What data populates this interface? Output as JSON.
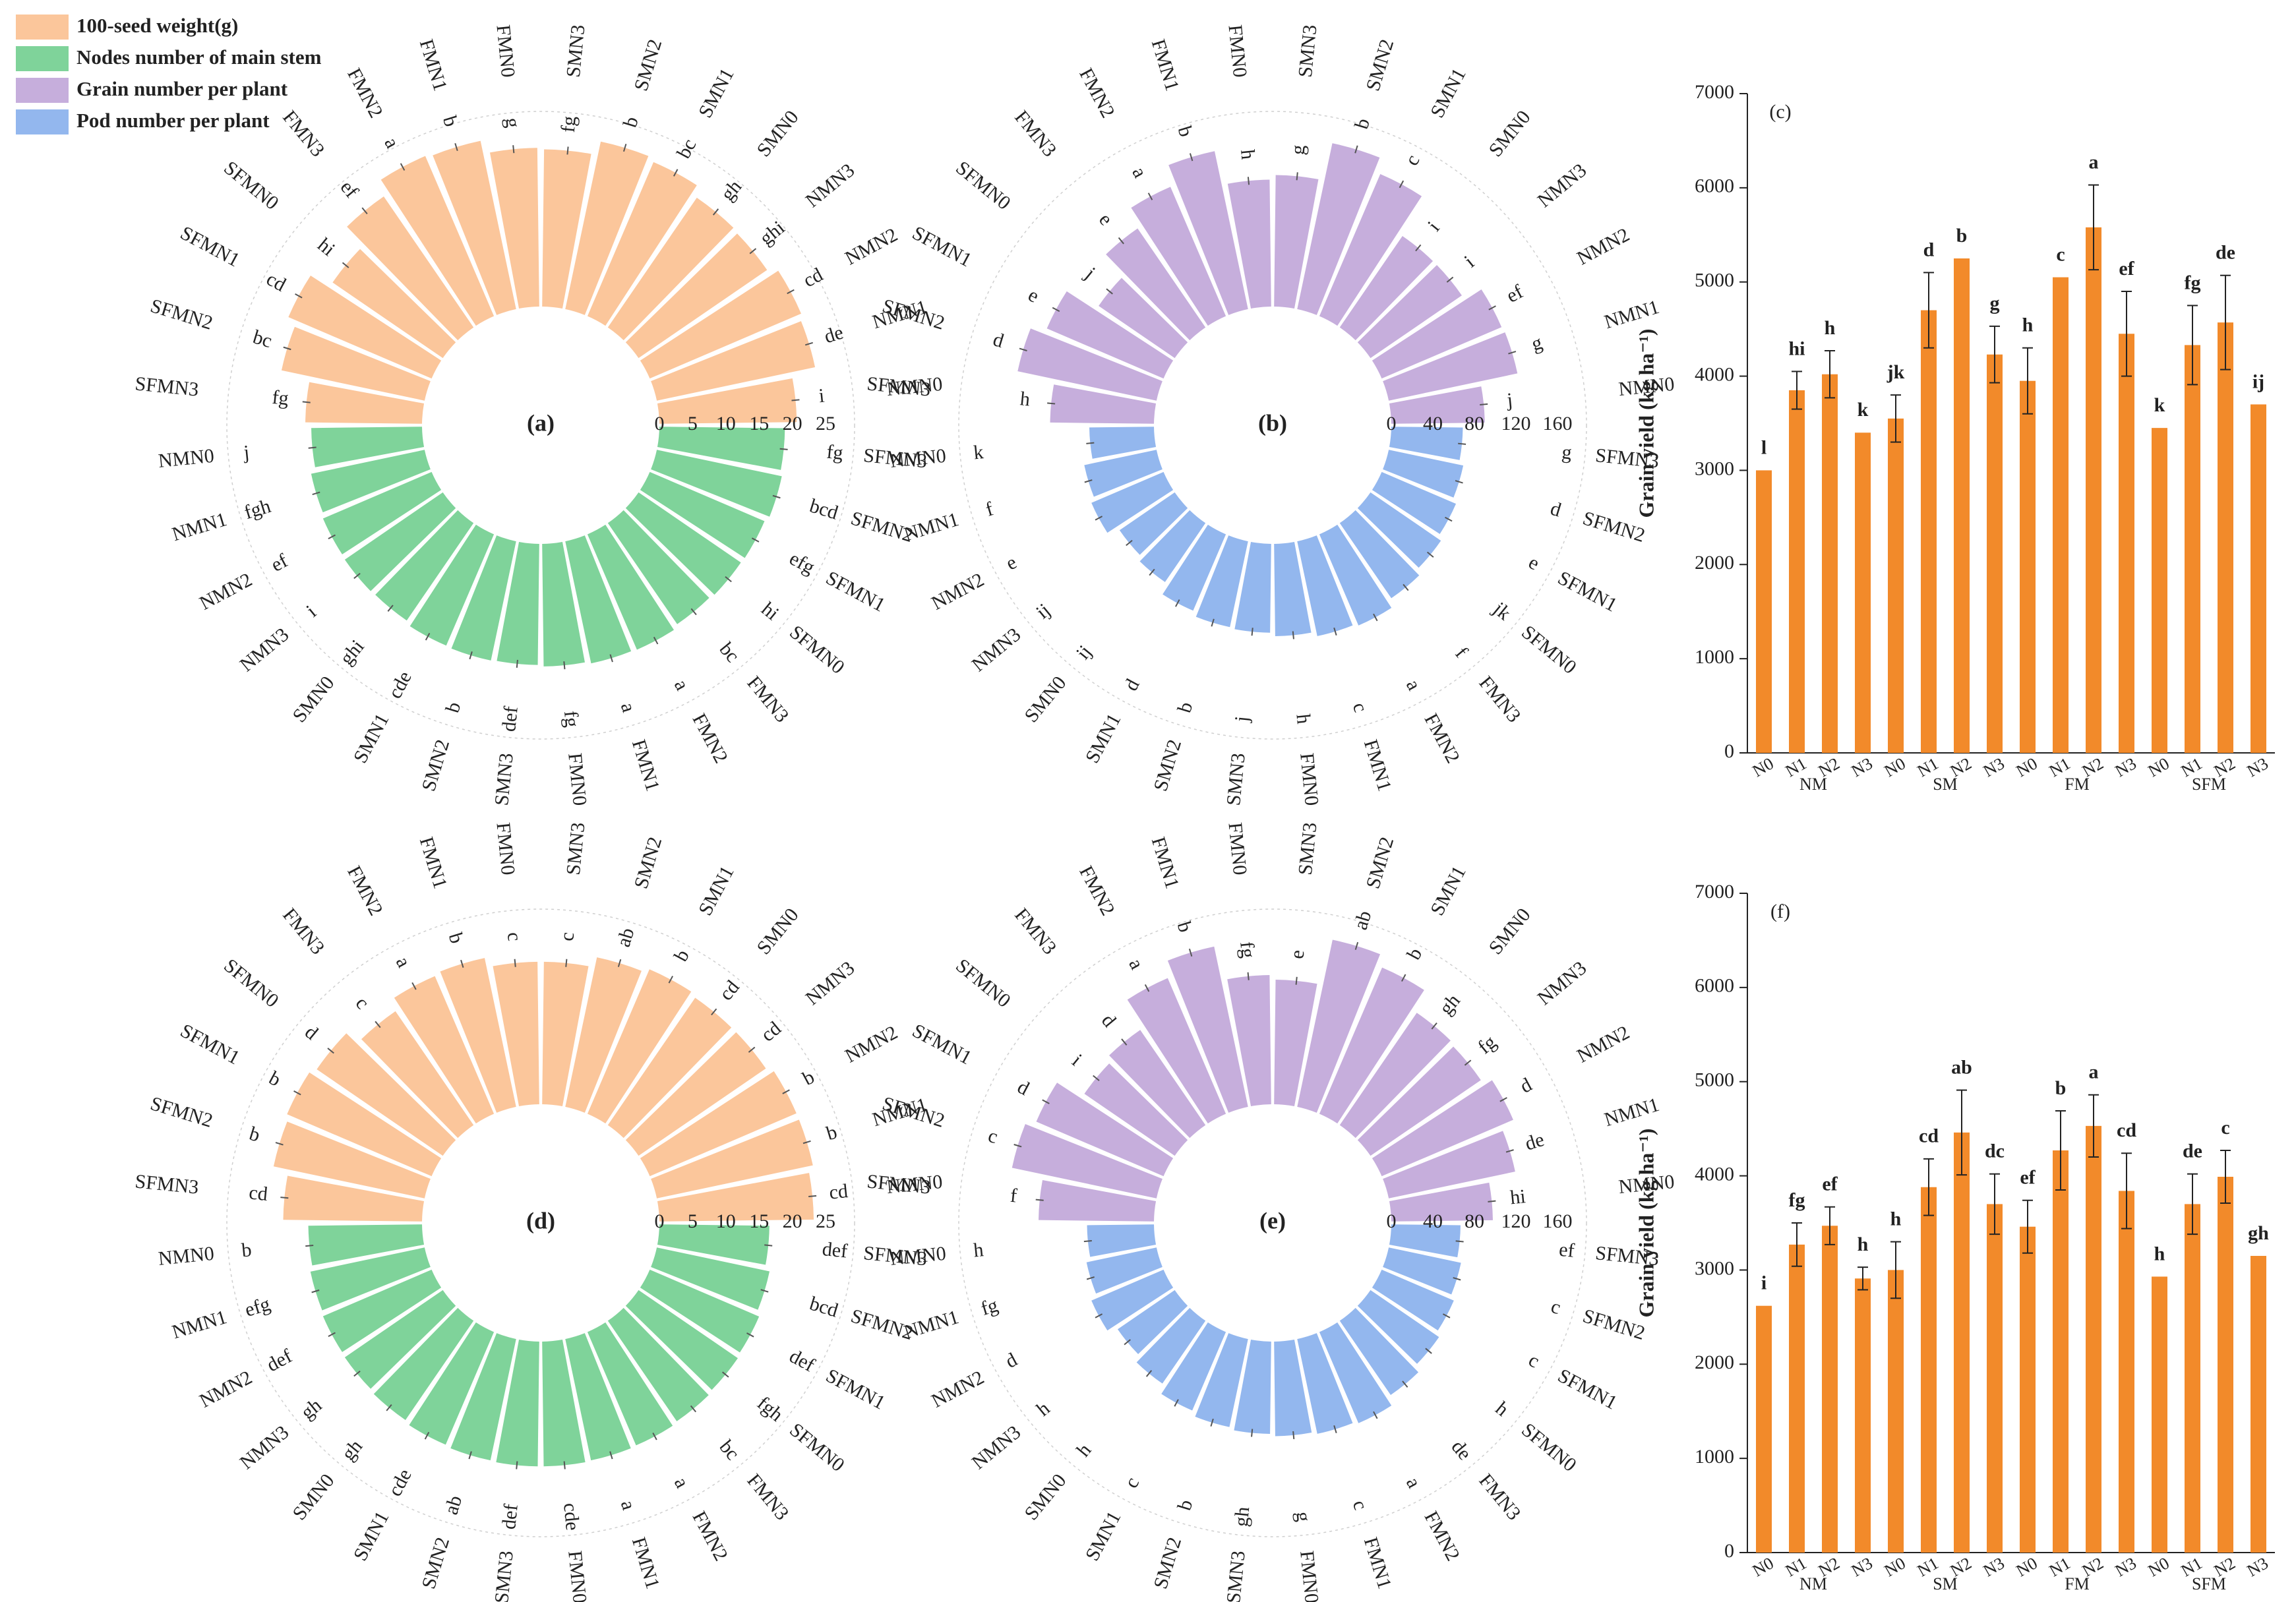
{
  "legend": [
    {
      "label": "100-seed weight(g)",
      "color": "#FBC69B"
    },
    {
      "label": "Nodes number of main stem",
      "color": "#7FD39A"
    },
    {
      "label": "Grain number per plant",
      "color": "#C6AEDC"
    },
    {
      "label": "Pod number per plant",
      "color": "#93B7EE"
    }
  ],
  "chart_data": [
    {
      "type": "radial-bar",
      "panel": "(a)",
      "color_outer": "#FBC69B",
      "color_inner": "#7FD39A",
      "scale_ticks": [
        "0",
        "5",
        "10",
        "15",
        "20",
        "25"
      ],
      "max": 25,
      "top_categories": [
        "SFMN3",
        "SFMN2",
        "SFMN1",
        "SFMN0",
        "FMN3",
        "FMN2",
        "FMN1",
        "FMN0",
        "SMN3",
        "SMN2",
        "SMN1",
        "SMN0",
        "NMN3",
        "NMN2",
        "NMN1",
        "NMN0"
      ],
      "top_values": [
        15.8,
        19.8,
        21.1,
        18.1,
        21.5,
        23.6,
        23.3,
        21.5,
        21.3,
        23.2,
        22.7,
        21.3,
        21.1,
        22.3,
        21.9,
        18.6
      ],
      "top_letters": [
        "fg",
        "bc",
        "cd",
        "hi",
        "ef",
        "a",
        "b",
        "g",
        "fg",
        "b",
        "bc",
        "gh",
        "ghi",
        "cd",
        "de",
        "i"
      ],
      "bottom_categories": [
        "NMN0",
        "NMN1",
        "NMN2",
        "NMN3",
        "SMN0",
        "SMN1",
        "SMN2",
        "SMN3",
        "FMN0",
        "FMN1",
        "FMN2",
        "FMN3",
        "SFMN0",
        "SFMN1",
        "SFMN2",
        "SFMN3"
      ],
      "bottom_values": [
        15.0,
        15.7,
        16.0,
        16.1,
        16.0,
        16.4,
        16.5,
        16.4,
        16.6,
        16.9,
        17.0,
        16.6,
        16.8,
        16.9,
        17.3,
        17.0
      ],
      "bottom_letters": [
        "j",
        "fgh",
        "ef",
        "i",
        "ghi",
        "cde",
        "b",
        "def",
        "fg",
        "a",
        "a",
        "bc",
        "hi",
        "efg",
        "bcd",
        "fg"
      ]
    },
    {
      "type": "radial-bar",
      "panel": "(b)",
      "color_outer": "#C6AEDC",
      "color_inner": "#93B7EE",
      "scale_ticks": [
        "0",
        "40",
        "80",
        "120",
        "160"
      ],
      "max": 160,
      "top_categories": [
        "SFMN3",
        "SFMN2",
        "SFMN1",
        "SFMN0",
        "FMN3",
        "FMN2",
        "FMN1",
        "FMN0",
        "SMN3",
        "SMN2",
        "SMN1",
        "SMN0",
        "NMN3",
        "NMN2",
        "NMN1",
        "NMN0"
      ],
      "top_values": [
        90,
        123,
        110,
        80,
        104,
        122,
        140,
        110,
        114,
        147,
        134,
        96,
        96,
        113,
        114,
        81
      ],
      "top_letters": [
        "h",
        "d",
        "e",
        "j",
        "e",
        "a",
        "b",
        "h",
        "g",
        "b",
        "c",
        "i",
        "i",
        "ef",
        "g",
        "j"
      ],
      "bottom_categories": [
        "NMN0",
        "NMN1",
        "NMN2",
        "NMN3",
        "SMN0",
        "SMN1",
        "SMN2",
        "SMN3",
        "FMN0",
        "FMN1",
        "FMN2",
        "FMN3",
        "SFMN0",
        "SFMN1",
        "SFMN2",
        "SFMN3"
      ],
      "bottom_values": [
        56,
        64,
        68,
        58,
        62,
        72,
        76,
        77,
        80,
        84,
        86,
        79,
        74,
        70,
        66,
        62
      ],
      "bottom_letters": [
        "k",
        "f",
        "e",
        "ij",
        "ij",
        "d",
        "b",
        "j",
        "h",
        "c",
        "a",
        "f",
        "jk",
        "e",
        "d",
        "g"
      ]
    },
    {
      "type": "bar",
      "panel": "(c)",
      "color": "#F28A2A",
      "ylabel": "Grain yield (kg ha⁻¹)",
      "ylim": [
        0,
        7000
      ],
      "yticks": [
        "0",
        "1000",
        "2000",
        "3000",
        "4000",
        "5000",
        "6000",
        "7000"
      ],
      "categories": [
        "N0",
        "N1",
        "N2",
        "N3",
        "N0",
        "N1",
        "N2",
        "N3",
        "N0",
        "N1",
        "N2",
        "N3",
        "N0",
        "N1",
        "N2",
        "N3"
      ],
      "groups": [
        "NM",
        "SM",
        "FM",
        "SFM"
      ],
      "values": [
        3000,
        3850,
        4020,
        3400,
        3550,
        4700,
        5250,
        4230,
        3950,
        5050,
        5580,
        4450,
        3450,
        4330,
        4570,
        3700
      ],
      "errors": [
        0,
        200,
        250,
        0,
        250,
        400,
        0,
        300,
        350,
        0,
        450,
        450,
        0,
        420,
        500,
        0
      ],
      "letters": [
        "l",
        "hi",
        "h",
        "k",
        "jk",
        "d",
        "b",
        "g",
        "h",
        "c",
        "a",
        "ef",
        "k",
        "fg",
        "de",
        "ij"
      ]
    },
    {
      "type": "radial-bar",
      "panel": "(d)",
      "color_outer": "#FBC69B",
      "color_inner": "#7FD39A",
      "scale_ticks": [
        "0",
        "5",
        "10",
        "15",
        "20",
        "25"
      ],
      "max": 25,
      "top_categories": [
        "SFMN3",
        "SFMN2",
        "SFMN1",
        "SFMN0",
        "FMN3",
        "FMN2",
        "FMN1",
        "FMN0",
        "SMN3",
        "SMN2",
        "SMN1",
        "SMN0",
        "NMN3",
        "NMN2",
        "NMN1",
        "NMN0"
      ],
      "top_values": [
        18.8,
        20.9,
        21.3,
        20.7,
        18.7,
        20.3,
        20.6,
        19.3,
        19.3,
        20.7,
        21.3,
        20.9,
        20.9,
        21.6,
        21.6,
        20.9
      ],
      "top_letters": [
        "cd",
        "b",
        "b",
        "d",
        "c",
        "a",
        "b",
        "c",
        "c",
        "ab",
        "b",
        "cd",
        "cd",
        "b",
        "b",
        "cd"
      ],
      "bottom_categories": [
        "NMN0",
        "NMN1",
        "NMN2",
        "NMN3",
        "SMN0",
        "SMN1",
        "SMN2",
        "SMN3",
        "FMN0",
        "FMN1",
        "FMN2",
        "FMN3",
        "SFMN0",
        "SFMN1",
        "SFMN2",
        "SFMN3"
      ],
      "bottom_values": [
        15.4,
        15.8,
        16.0,
        16.1,
        16.3,
        16.6,
        16.8,
        16.9,
        16.9,
        16.8,
        16.7,
        16.5,
        16.3,
        16.1,
        15.6,
        14.9
      ],
      "bottom_letters": [
        "b",
        "efg",
        "def",
        "gh",
        "gh",
        "cde",
        "ab",
        "def",
        "cde",
        "a",
        "a",
        "bc",
        "fgh",
        "def",
        "bcd",
        "def"
      ]
    },
    {
      "type": "radial-bar",
      "panel": "(e)",
      "color_outer": "#C6AEDC",
      "color_inner": "#93B7EE",
      "scale_ticks": [
        "0",
        "40",
        "80",
        "120",
        "160"
      ],
      "max": 160,
      "top_categories": [
        "SFMN3",
        "SFMN2",
        "SFMN1",
        "SFMN0",
        "FMN3",
        "FMN2",
        "FMN1",
        "FMN0",
        "SMN3",
        "SMN2",
        "SMN1",
        "SMN0",
        "NMN3",
        "NMN2",
        "NMN1",
        "NMN0"
      ],
      "top_values": [
        100,
        128,
        120,
        95,
        100,
        128,
        142,
        112,
        108,
        148,
        138,
        118,
        116,
        124,
        112,
        88
      ],
      "top_letters": [
        "f",
        "c",
        "d",
        "i",
        "d",
        "a",
        "b",
        "fg",
        "e",
        "ab",
        "b",
        "gh",
        "fg",
        "d",
        "de",
        "hi"
      ],
      "bottom_categories": [
        "NMN0",
        "NMN1",
        "NMN2",
        "NMN3",
        "SMN0",
        "SMN1",
        "SMN2",
        "SMN3",
        "FMN0",
        "FMN1",
        "FMN2",
        "FMN3",
        "SFMN0",
        "SFMN1",
        "SFMN2",
        "SFMN3"
      ],
      "bottom_values": [
        58,
        62,
        68,
        60,
        66,
        74,
        78,
        80,
        82,
        84,
        86,
        78,
        72,
        68,
        64,
        60
      ],
      "bottom_letters": [
        "h",
        "fg",
        "d",
        "h",
        "h",
        "c",
        "b",
        "gh",
        "g",
        "c",
        "a",
        "de",
        "h",
        "c",
        "c",
        "ef"
      ]
    },
    {
      "type": "bar",
      "panel": "(f)",
      "color": "#F28A2A",
      "ylabel": "Grain yield (kg ha⁻¹)",
      "ylim": [
        0,
        7000
      ],
      "yticks": [
        "0",
        "1000",
        "2000",
        "3000",
        "4000",
        "5000",
        "6000",
        "7000"
      ],
      "categories": [
        "N0",
        "N1",
        "N2",
        "N3",
        "N0",
        "N1",
        "N2",
        "N3",
        "N0",
        "N1",
        "N2",
        "N3",
        "N0",
        "N1",
        "N2",
        "N3"
      ],
      "groups": [
        "NM",
        "SM",
        "FM",
        "SFM"
      ],
      "values": [
        2620,
        3270,
        3470,
        2910,
        3000,
        3880,
        4460,
        3700,
        3460,
        4270,
        4530,
        3840,
        2930,
        3700,
        3990,
        3150
      ],
      "errors": [
        0,
        230,
        200,
        120,
        300,
        300,
        450,
        320,
        280,
        420,
        330,
        400,
        0,
        320,
        280,
        0
      ],
      "letters": [
        "i",
        "fg",
        "ef",
        "h",
        "h",
        "cd",
        "ab",
        "dc",
        "ef",
        "b",
        "a",
        "cd",
        "h",
        "de",
        "c",
        "gh"
      ]
    }
  ]
}
